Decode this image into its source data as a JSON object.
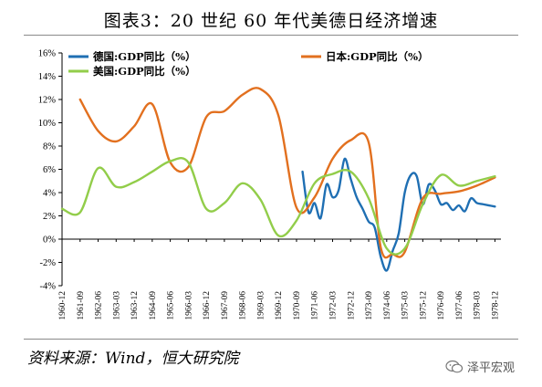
{
  "page": {
    "title": "图表3：20 世纪 60 年代美德日经济增速",
    "source": "资料来源：Wind，恒大研究院",
    "watermark": "泽平宏观",
    "colors": {
      "germany": "#1f6fb3",
      "japan": "#e2701f",
      "usa": "#92cd4a",
      "axis": "#000000"
    }
  },
  "chart_data": {
    "type": "line",
    "ylim": [
      -4,
      16
    ],
    "yticks": [
      "-4%",
      "-2%",
      "0%",
      "2%",
      "4%",
      "6%",
      "8%",
      "10%",
      "12%",
      "14%",
      "16%"
    ],
    "xlim": [
      0,
      73
    ],
    "x_tick_labels": [
      "1960-12",
      "1961-09",
      "1962-06",
      "1963-03",
      "1963-12",
      "1964-09",
      "1965-06",
      "1966-03",
      "1966-12",
      "1967-09",
      "1968-06",
      "1969-03",
      "1969-12",
      "1970-09",
      "1971-06",
      "1972-03",
      "1972-12",
      "1973-09",
      "1974-06",
      "1975-03",
      "1975-12",
      "1976-09",
      "1977-06",
      "1978-03",
      "1978-12"
    ],
    "legend": [
      "德国:GDP同比（%）",
      "日本:GDP同比（%）",
      "美国:GDP同比（%）"
    ],
    "series": [
      {
        "name": "德国:GDP同比（%）",
        "color": "#1f6fb3",
        "x": [
          40,
          41,
          42,
          43,
          44,
          45,
          46,
          47,
          48,
          49,
          50,
          51,
          52,
          53,
          54,
          55,
          56,
          57,
          58,
          59,
          60,
          61,
          62,
          63,
          64,
          65,
          66,
          67,
          68,
          69,
          70,
          71,
          72
        ],
        "y": [
          5.8,
          2.3,
          3.1,
          1.8,
          4.7,
          3.6,
          4.2,
          6.9,
          5.2,
          3.6,
          2.6,
          1.5,
          1.0,
          -1.5,
          -2.7,
          -1.0,
          0.5,
          4.0,
          5.5,
          5.4,
          3.0,
          4.7,
          4.2,
          3.0,
          3.1,
          2.5,
          2.9,
          2.4,
          3.5,
          3.1,
          3.0,
          2.9,
          2.8
        ]
      },
      {
        "name": "日本:GDP同比（%）",
        "color": "#e2701f",
        "x": [
          3,
          6,
          9,
          12,
          15,
          18,
          21,
          24,
          27,
          30,
          33,
          36,
          39,
          42,
          45,
          48,
          51,
          53,
          55,
          57,
          60,
          63,
          66,
          69,
          72
        ],
        "y": [
          12.0,
          9.3,
          8.4,
          9.7,
          11.6,
          6.6,
          6.2,
          10.5,
          11.0,
          12.4,
          12.9,
          10.6,
          2.7,
          3.6,
          6.9,
          8.5,
          8.3,
          -0.7,
          -1.3,
          -1.1,
          3.5,
          3.9,
          4.1,
          4.6,
          5.3
        ]
      },
      {
        "name": "美国:GDP同比（%）",
        "color": "#92cd4a",
        "x": [
          0,
          3,
          6,
          9,
          12,
          15,
          18,
          21,
          24,
          27,
          30,
          33,
          36,
          39,
          42,
          45,
          48,
          51,
          54,
          57,
          60,
          63,
          66,
          69,
          72
        ],
        "y": [
          2.6,
          2.3,
          6.1,
          4.5,
          4.9,
          5.8,
          6.7,
          6.6,
          2.6,
          3.1,
          4.8,
          3.4,
          0.3,
          1.6,
          4.8,
          5.6,
          5.8,
          3.5,
          -0.8,
          -0.8,
          3.0,
          5.5,
          4.6,
          5.0,
          5.4
        ]
      }
    ]
  }
}
